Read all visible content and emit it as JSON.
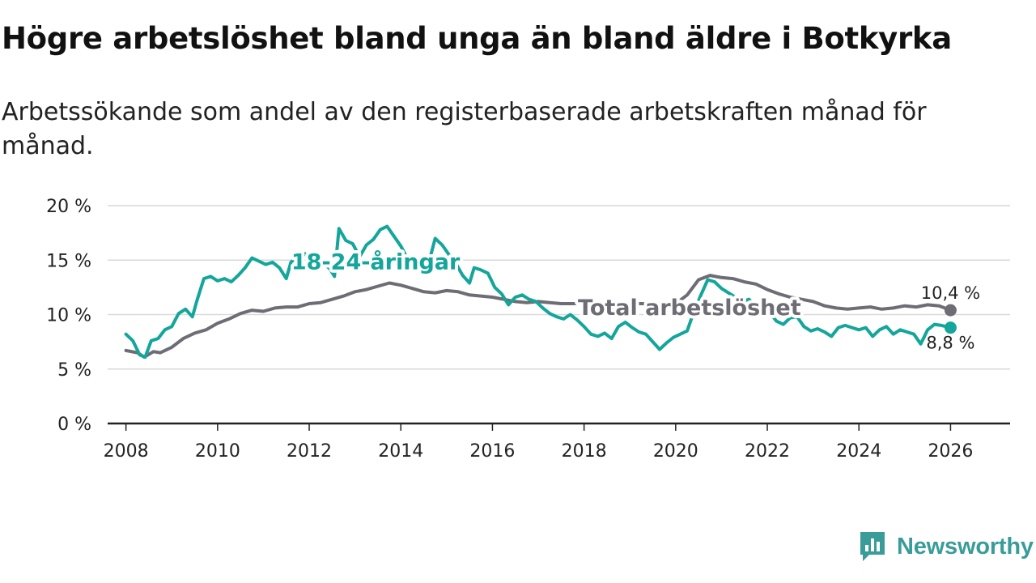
{
  "header": {
    "title": "Högre arbetslöshet bland unga än bland äldre i Botkyrka",
    "subtitle": "Arbetssökande som andel av den registerbaserade arbetskraften månad för månad."
  },
  "brand": {
    "name": "Newsworthy",
    "icon": "newsworthy-logo-icon",
    "color": "#3a9c98"
  },
  "chart_data": {
    "type": "line",
    "title": "Högre arbetslöshet bland unga än bland äldre i Botkyrka",
    "subtitle": "Arbetssökande som andel av den registerbaserade arbetskraften månad för månad.",
    "xlabel": "",
    "ylabel": "",
    "xlim": [
      2007.6,
      2027.3
    ],
    "ylim": [
      0,
      20
    ],
    "x_ticks": [
      2008,
      2010,
      2012,
      2014,
      2016,
      2018,
      2020,
      2022,
      2024,
      2026
    ],
    "x_tick_labels": [
      "2008",
      "2010",
      "2012",
      "2014",
      "2016",
      "2018",
      "2020",
      "2022",
      "2024",
      "2026"
    ],
    "y_ticks": [
      0,
      5,
      10,
      15,
      20
    ],
    "y_tick_labels": [
      "0 %",
      "5 %",
      "10 %",
      "15 %",
      "20 %"
    ],
    "grid": true,
    "series": [
      {
        "name": "Total arbetslöshet",
        "label": "Total arbetslöshet",
        "color": "#6e6c74",
        "end_label": "10,4 %",
        "points": [
          [
            2008.0,
            6.7
          ],
          [
            2008.25,
            6.5
          ],
          [
            2008.4,
            6.1
          ],
          [
            2008.6,
            6.6
          ],
          [
            2008.75,
            6.5
          ],
          [
            2009.0,
            7.0
          ],
          [
            2009.25,
            7.8
          ],
          [
            2009.5,
            8.3
          ],
          [
            2009.75,
            8.6
          ],
          [
            2010.0,
            9.2
          ],
          [
            2010.25,
            9.6
          ],
          [
            2010.5,
            10.1
          ],
          [
            2010.75,
            10.4
          ],
          [
            2011.0,
            10.3
          ],
          [
            2011.25,
            10.6
          ],
          [
            2011.5,
            10.7
          ],
          [
            2011.75,
            10.7
          ],
          [
            2012.0,
            11.0
          ],
          [
            2012.25,
            11.1
          ],
          [
            2012.5,
            11.4
          ],
          [
            2012.75,
            11.7
          ],
          [
            2013.0,
            12.1
          ],
          [
            2013.25,
            12.3
          ],
          [
            2013.5,
            12.6
          ],
          [
            2013.75,
            12.9
          ],
          [
            2014.0,
            12.7
          ],
          [
            2014.25,
            12.4
          ],
          [
            2014.5,
            12.1
          ],
          [
            2014.75,
            12.0
          ],
          [
            2015.0,
            12.2
          ],
          [
            2015.25,
            12.1
          ],
          [
            2015.5,
            11.8
          ],
          [
            2015.75,
            11.7
          ],
          [
            2016.0,
            11.6
          ],
          [
            2016.25,
            11.4
          ],
          [
            2016.5,
            11.2
          ],
          [
            2016.75,
            11.1
          ],
          [
            2017.0,
            11.2
          ],
          [
            2017.25,
            11.1
          ],
          [
            2017.5,
            11.0
          ],
          [
            2017.75,
            11.0
          ],
          [
            2018.0,
            11.0
          ],
          [
            2018.5,
            11.0
          ],
          [
            2019.0,
            11.0
          ],
          [
            2019.5,
            11.0
          ],
          [
            2020.0,
            11.0
          ],
          [
            2020.25,
            11.8
          ],
          [
            2020.5,
            13.2
          ],
          [
            2020.75,
            13.6
          ],
          [
            2021.0,
            13.4
          ],
          [
            2021.25,
            13.3
          ],
          [
            2021.5,
            13.0
          ],
          [
            2021.75,
            12.8
          ],
          [
            2022.0,
            12.3
          ],
          [
            2022.25,
            11.9
          ],
          [
            2022.5,
            11.6
          ],
          [
            2022.75,
            11.4
          ],
          [
            2023.0,
            11.2
          ],
          [
            2023.25,
            10.8
          ],
          [
            2023.5,
            10.6
          ],
          [
            2023.75,
            10.5
          ],
          [
            2024.0,
            10.6
          ],
          [
            2024.25,
            10.7
          ],
          [
            2024.5,
            10.5
          ],
          [
            2024.75,
            10.6
          ],
          [
            2025.0,
            10.8
          ],
          [
            2025.25,
            10.7
          ],
          [
            2025.5,
            10.9
          ],
          [
            2025.75,
            10.8
          ],
          [
            2026.0,
            10.4
          ]
        ]
      },
      {
        "name": "18-24-åringar",
        "label": "18-24-åringar",
        "color": "#14a59b",
        "end_label": "8,8 %",
        "points": [
          [
            2008.0,
            8.2
          ],
          [
            2008.15,
            7.6
          ],
          [
            2008.3,
            6.3
          ],
          [
            2008.42,
            6.1
          ],
          [
            2008.55,
            7.6
          ],
          [
            2008.7,
            7.8
          ],
          [
            2008.85,
            8.6
          ],
          [
            2009.0,
            8.9
          ],
          [
            2009.15,
            10.1
          ],
          [
            2009.3,
            10.5
          ],
          [
            2009.45,
            9.8
          ],
          [
            2009.55,
            11.3
          ],
          [
            2009.7,
            13.3
          ],
          [
            2009.85,
            13.5
          ],
          [
            2010.0,
            13.1
          ],
          [
            2010.15,
            13.3
          ],
          [
            2010.3,
            13.0
          ],
          [
            2010.45,
            13.6
          ],
          [
            2010.6,
            14.3
          ],
          [
            2010.75,
            15.2
          ],
          [
            2010.9,
            14.9
          ],
          [
            2011.05,
            14.6
          ],
          [
            2011.2,
            14.8
          ],
          [
            2011.35,
            14.3
          ],
          [
            2011.5,
            13.3
          ],
          [
            2011.6,
            14.8
          ],
          [
            2011.75,
            15.4
          ],
          [
            2011.9,
            15.6
          ],
          [
            2012.05,
            14.9
          ],
          [
            2012.2,
            14.8
          ],
          [
            2012.35,
            14.6
          ],
          [
            2012.45,
            14.2
          ],
          [
            2012.55,
            13.5
          ],
          [
            2012.65,
            17.9
          ],
          [
            2012.8,
            16.8
          ],
          [
            2012.95,
            16.5
          ],
          [
            2013.1,
            15.3
          ],
          [
            2013.25,
            16.4
          ],
          [
            2013.4,
            16.9
          ],
          [
            2013.55,
            17.8
          ],
          [
            2013.7,
            18.1
          ],
          [
            2013.85,
            17.2
          ],
          [
            2014.0,
            16.3
          ],
          [
            2014.15,
            15.1
          ],
          [
            2014.3,
            14.5
          ],
          [
            2014.45,
            13.7
          ],
          [
            2014.6,
            14.6
          ],
          [
            2014.75,
            17.0
          ],
          [
            2014.9,
            16.4
          ],
          [
            2015.05,
            15.5
          ],
          [
            2015.2,
            14.7
          ],
          [
            2015.35,
            13.6
          ],
          [
            2015.5,
            12.9
          ],
          [
            2015.6,
            14.3
          ],
          [
            2015.75,
            14.1
          ],
          [
            2015.9,
            13.8
          ],
          [
            2016.05,
            12.5
          ],
          [
            2016.2,
            11.9
          ],
          [
            2016.35,
            10.9
          ],
          [
            2016.5,
            11.6
          ],
          [
            2016.65,
            11.8
          ],
          [
            2016.8,
            11.4
          ],
          [
            2016.95,
            11.2
          ],
          [
            2017.1,
            10.6
          ],
          [
            2017.25,
            10.1
          ],
          [
            2017.4,
            9.8
          ],
          [
            2017.55,
            9.6
          ],
          [
            2017.7,
            10.0
          ],
          [
            2017.85,
            9.5
          ],
          [
            2018.0,
            8.9
          ],
          [
            2018.15,
            8.2
          ],
          [
            2018.3,
            8.0
          ],
          [
            2018.45,
            8.3
          ],
          [
            2018.6,
            7.8
          ],
          [
            2018.75,
            8.9
          ],
          [
            2018.9,
            9.3
          ],
          [
            2019.05,
            8.8
          ],
          [
            2019.2,
            8.4
          ],
          [
            2019.35,
            8.2
          ],
          [
            2019.5,
            7.5
          ],
          [
            2019.65,
            6.8
          ],
          [
            2019.8,
            7.4
          ],
          [
            2019.95,
            7.9
          ],
          [
            2020.1,
            8.2
          ],
          [
            2020.25,
            8.5
          ],
          [
            2020.4,
            10.3
          ],
          [
            2020.55,
            11.8
          ],
          [
            2020.7,
            13.2
          ],
          [
            2020.85,
            13.0
          ],
          [
            2021.0,
            12.4
          ],
          [
            2021.15,
            12.0
          ],
          [
            2021.3,
            11.6
          ],
          [
            2021.45,
            11.2
          ],
          [
            2021.6,
            11.4
          ],
          [
            2021.75,
            10.8
          ],
          [
            2021.9,
            10.6
          ],
          [
            2022.05,
            10.2
          ],
          [
            2022.2,
            9.4
          ],
          [
            2022.35,
            9.1
          ],
          [
            2022.5,
            9.7
          ],
          [
            2022.65,
            9.8
          ],
          [
            2022.8,
            8.9
          ],
          [
            2022.95,
            8.5
          ],
          [
            2023.1,
            8.7
          ],
          [
            2023.25,
            8.4
          ],
          [
            2023.4,
            8.0
          ],
          [
            2023.55,
            8.8
          ],
          [
            2023.7,
            9.0
          ],
          [
            2023.85,
            8.8
          ],
          [
            2024.0,
            8.6
          ],
          [
            2024.15,
            8.8
          ],
          [
            2024.3,
            8.0
          ],
          [
            2024.45,
            8.6
          ],
          [
            2024.6,
            8.9
          ],
          [
            2024.75,
            8.2
          ],
          [
            2024.9,
            8.6
          ],
          [
            2025.05,
            8.4
          ],
          [
            2025.2,
            8.2
          ],
          [
            2025.35,
            7.3
          ],
          [
            2025.5,
            8.6
          ],
          [
            2025.65,
            9.1
          ],
          [
            2025.8,
            9.0
          ],
          [
            2026.0,
            8.8
          ]
        ]
      }
    ]
  }
}
